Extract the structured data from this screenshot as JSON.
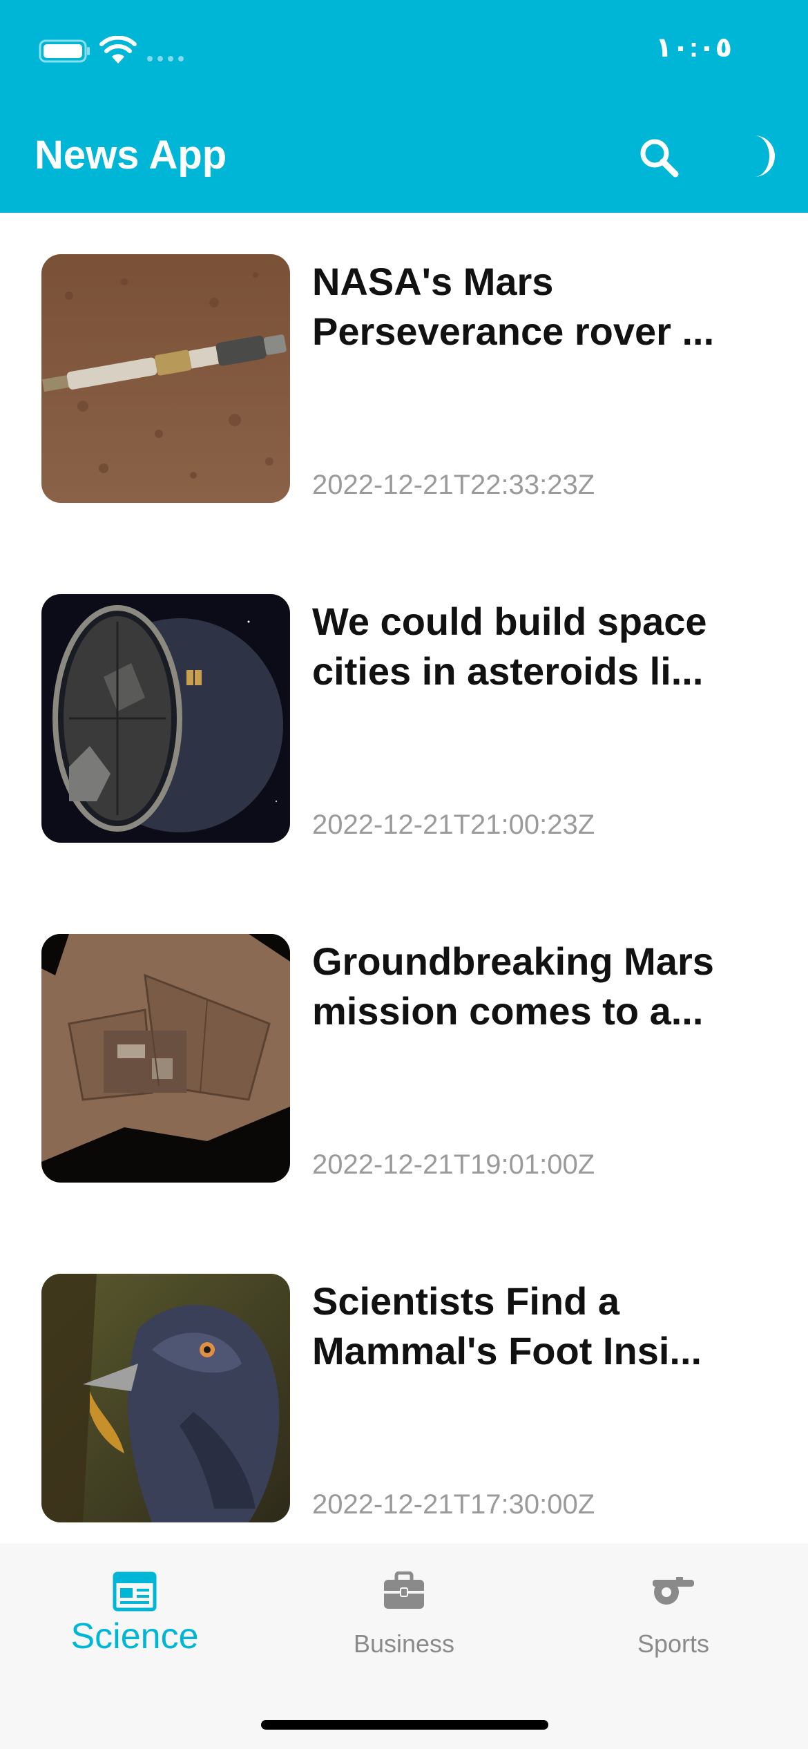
{
  "colors": {
    "accent": "#00b6d6",
    "title_text": "#111111",
    "date_text": "#9a9a9a",
    "tab_inactive": "#8a8a8a",
    "tab_bar_bg": "#f7f7f7"
  },
  "status_bar": {
    "time": "١٠:٠٥",
    "icons": [
      "battery-icon",
      "wifi-icon",
      "signal-icon"
    ]
  },
  "app_bar": {
    "title": "News App",
    "actions": [
      "search-icon",
      "theme-toggle-icon"
    ]
  },
  "articles": [
    {
      "title": "NASA's Mars Perseverance rover ...",
      "date": "2022-12-21T22:33:23Z"
    },
    {
      "title": "We could build space cities in asteroids li...",
      "date": "2022-12-21T21:00:23Z"
    },
    {
      "title": "Groundbreaking Mars mission comes to a...",
      "date": "2022-12-21T19:01:00Z"
    },
    {
      "title": "Scientists Find a Mammal's Foot Insi...",
      "date": "2022-12-21T17:30:00Z"
    }
  ],
  "tabs": [
    {
      "label": "Science",
      "icon": "newspaper-icon",
      "active": true
    },
    {
      "label": "Business",
      "icon": "briefcase-icon",
      "active": false
    },
    {
      "label": "Sports",
      "icon": "whistle-icon",
      "active": false
    }
  ]
}
